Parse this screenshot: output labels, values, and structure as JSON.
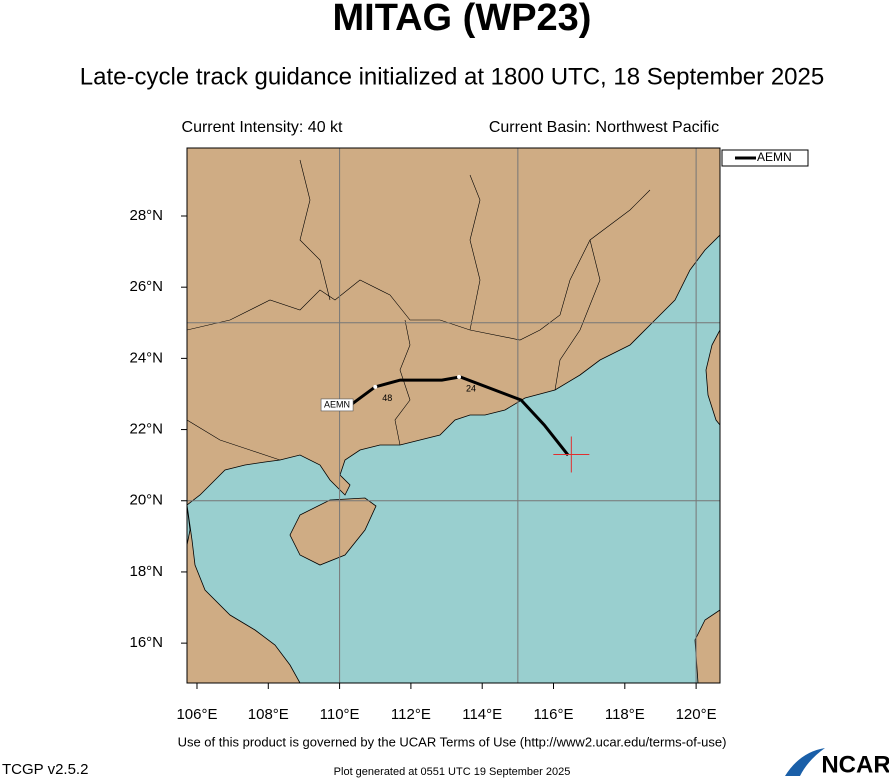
{
  "title": "MITAG (WP23)",
  "subtitle": "Late-cycle track guidance initialized at 1800 UTC, 18 September 2025",
  "current_intensity": "Current Intensity: 40 kt",
  "current_basin": "Current Basin: Northwest Pacific",
  "map": {
    "xlim": [
      105.72,
      120.67
    ],
    "ylim": [
      14.88,
      29.91
    ],
    "xticks": [
      {
        "value": 106,
        "label": "106°E"
      },
      {
        "value": 108,
        "label": "108°E"
      },
      {
        "value": 110,
        "label": "110°E"
      },
      {
        "value": 112,
        "label": "112°E"
      },
      {
        "value": 114,
        "label": "114°E"
      },
      {
        "value": 116,
        "label": "116°E"
      },
      {
        "value": 118,
        "label": "118°E"
      },
      {
        "value": 120,
        "label": "120°E"
      }
    ],
    "yticks": [
      {
        "value": 16,
        "label": "16°N"
      },
      {
        "value": 18,
        "label": "18°N"
      },
      {
        "value": 20,
        "label": "20°N"
      },
      {
        "value": 22,
        "label": "22°N"
      },
      {
        "value": 24,
        "label": "24°N"
      },
      {
        "value": 26,
        "label": "26°N"
      },
      {
        "value": 28,
        "label": "28°N"
      }
    ],
    "grid_lon": [
      110,
      115,
      120
    ],
    "grid_lat": [
      20,
      25
    ],
    "land_color": "#cfac84",
    "ocean_color": "#99cfcf",
    "grid_color": "#777777"
  },
  "track": {
    "name": "AEMN",
    "color": "#000000",
    "lon": [
      116.41,
      115.74,
      115.09,
      113.38,
      112.87,
      111.7,
      111.0,
      110.35
    ],
    "lat": [
      21.28,
      22.13,
      22.83,
      23.48,
      23.39,
      23.39,
      23.2,
      22.72
    ],
    "hour_marks": [
      {
        "hour": 24,
        "lon": 113.35,
        "lat": 23.48
      },
      {
        "hour": 48,
        "lon": 111.0,
        "lat": 23.2
      }
    ]
  },
  "current_position": {
    "lon": 116.5,
    "lat": 21.3,
    "color": "#e03030"
  },
  "footer": {
    "terms": "Use of this product is governed by the UCAR Terms of Use (http://www2.ucar.edu/terms-of-use)",
    "version": "TCGP v2.5.2",
    "generated": "Plot generated at 0551 UTC   19 September 2025",
    "logo": "NCAR"
  }
}
